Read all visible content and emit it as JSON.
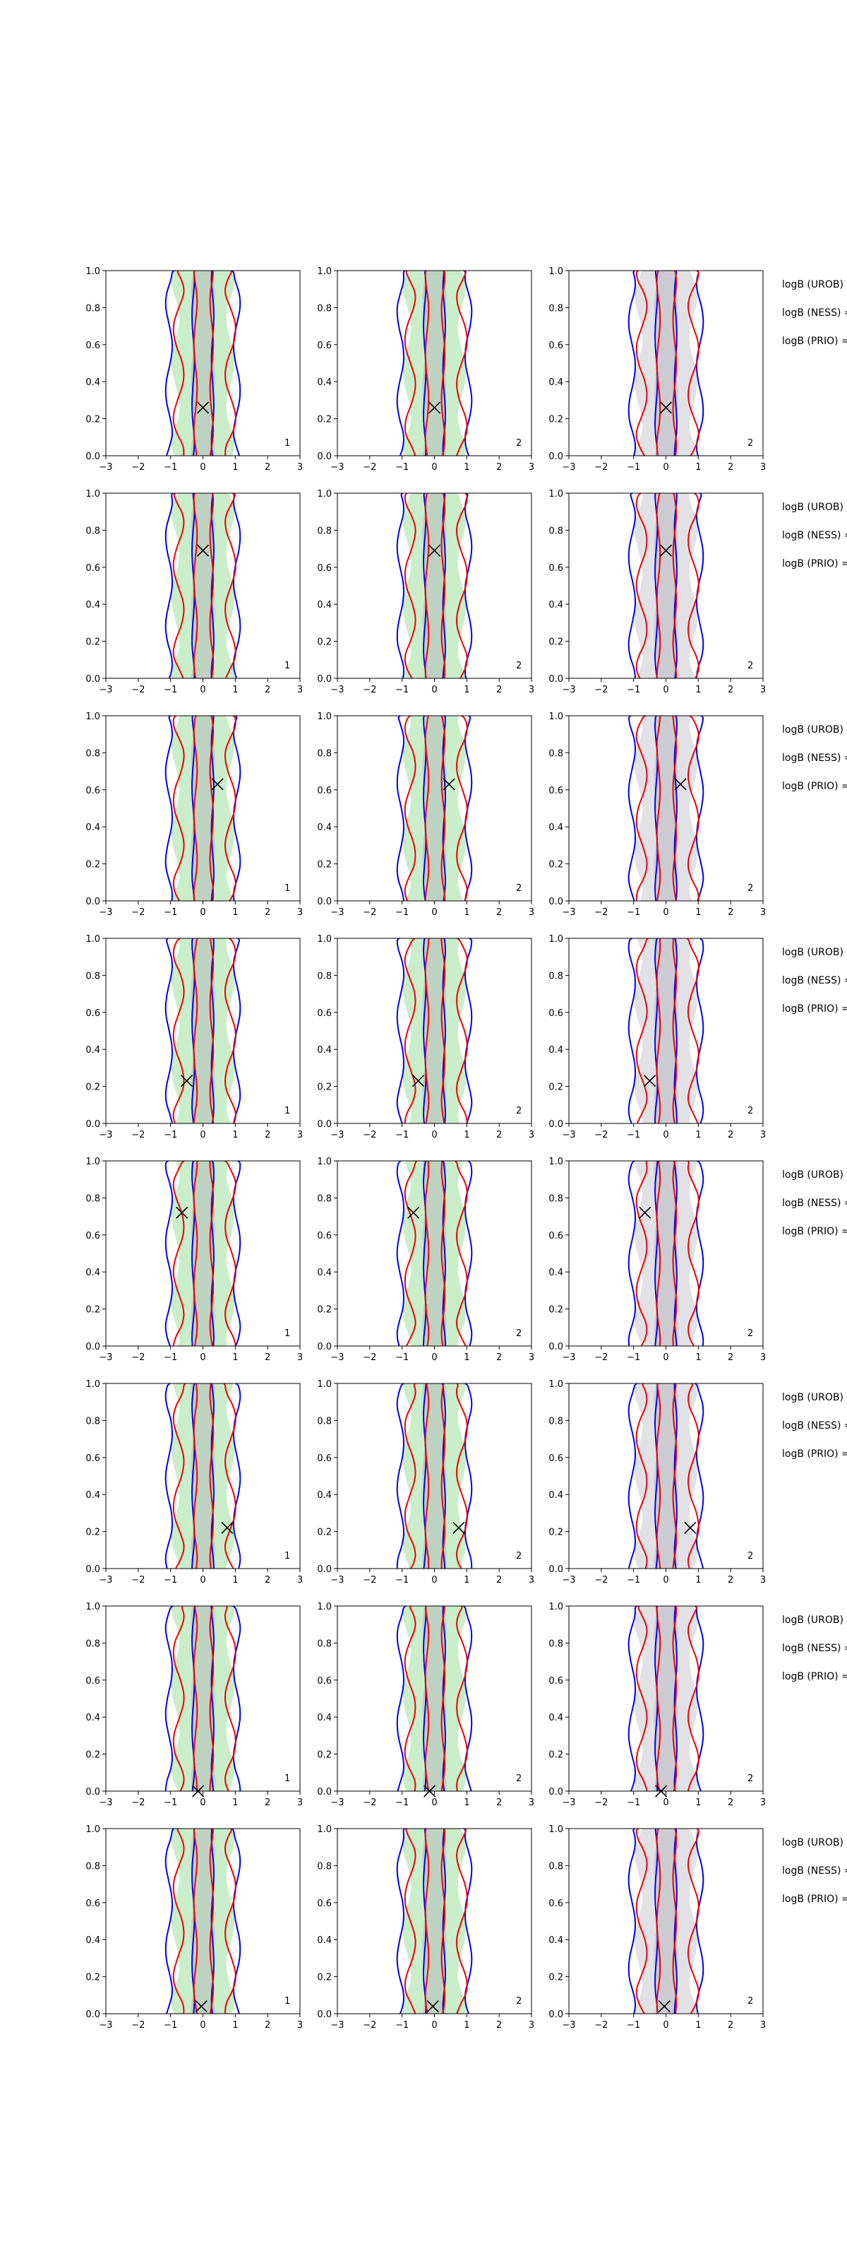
{
  "figure": {
    "side_labels": [
      "logB (UROB) =",
      "logB (NESS) =",
      "logB (PRIO) ="
    ]
  },
  "chart_data": {
    "type": "contour",
    "title": "",
    "xlabel": "",
    "ylabel": "",
    "xlim": [
      -3,
      3
    ],
    "ylim": [
      0.0,
      1.0
    ],
    "x_ticks": [
      "−3",
      "−2",
      "−1",
      "0",
      "1",
      "2",
      "3"
    ],
    "y_ticks": [
      "0.0",
      "0.2",
      "0.4",
      "0.6",
      "0.8",
      "1.0"
    ],
    "grid": false,
    "series_colors": {
      "blue_contour": "#0000ee",
      "red_contour": "#ee0000",
      "green_fill": "#b8e8b8",
      "grey_fill": "#d8d8de"
    },
    "marker": "×",
    "rows": [
      {
        "marker": [
          0.0,
          0.26
        ],
        "panel_tags": [
          "1",
          "2",
          "2"
        ]
      },
      {
        "marker": [
          0.0,
          0.69
        ],
        "panel_tags": [
          "1",
          "2",
          "2"
        ]
      },
      {
        "marker": [
          0.45,
          0.63
        ],
        "panel_tags": [
          "1",
          "2",
          "2"
        ]
      },
      {
        "marker": [
          -0.5,
          0.23
        ],
        "panel_tags": [
          "1",
          "2",
          "2"
        ]
      },
      {
        "marker": [
          -0.65,
          0.72
        ],
        "panel_tags": [
          "1",
          "2",
          "2"
        ]
      },
      {
        "marker": [
          0.75,
          0.22
        ],
        "panel_tags": [
          "1",
          "2",
          "2"
        ]
      },
      {
        "marker": [
          -0.15,
          0.0
        ],
        "panel_tags": [
          "1",
          "2",
          "2"
        ]
      },
      {
        "marker": [
          -0.05,
          0.04
        ],
        "panel_tags": [
          "1",
          "2",
          "2"
        ]
      }
    ]
  }
}
